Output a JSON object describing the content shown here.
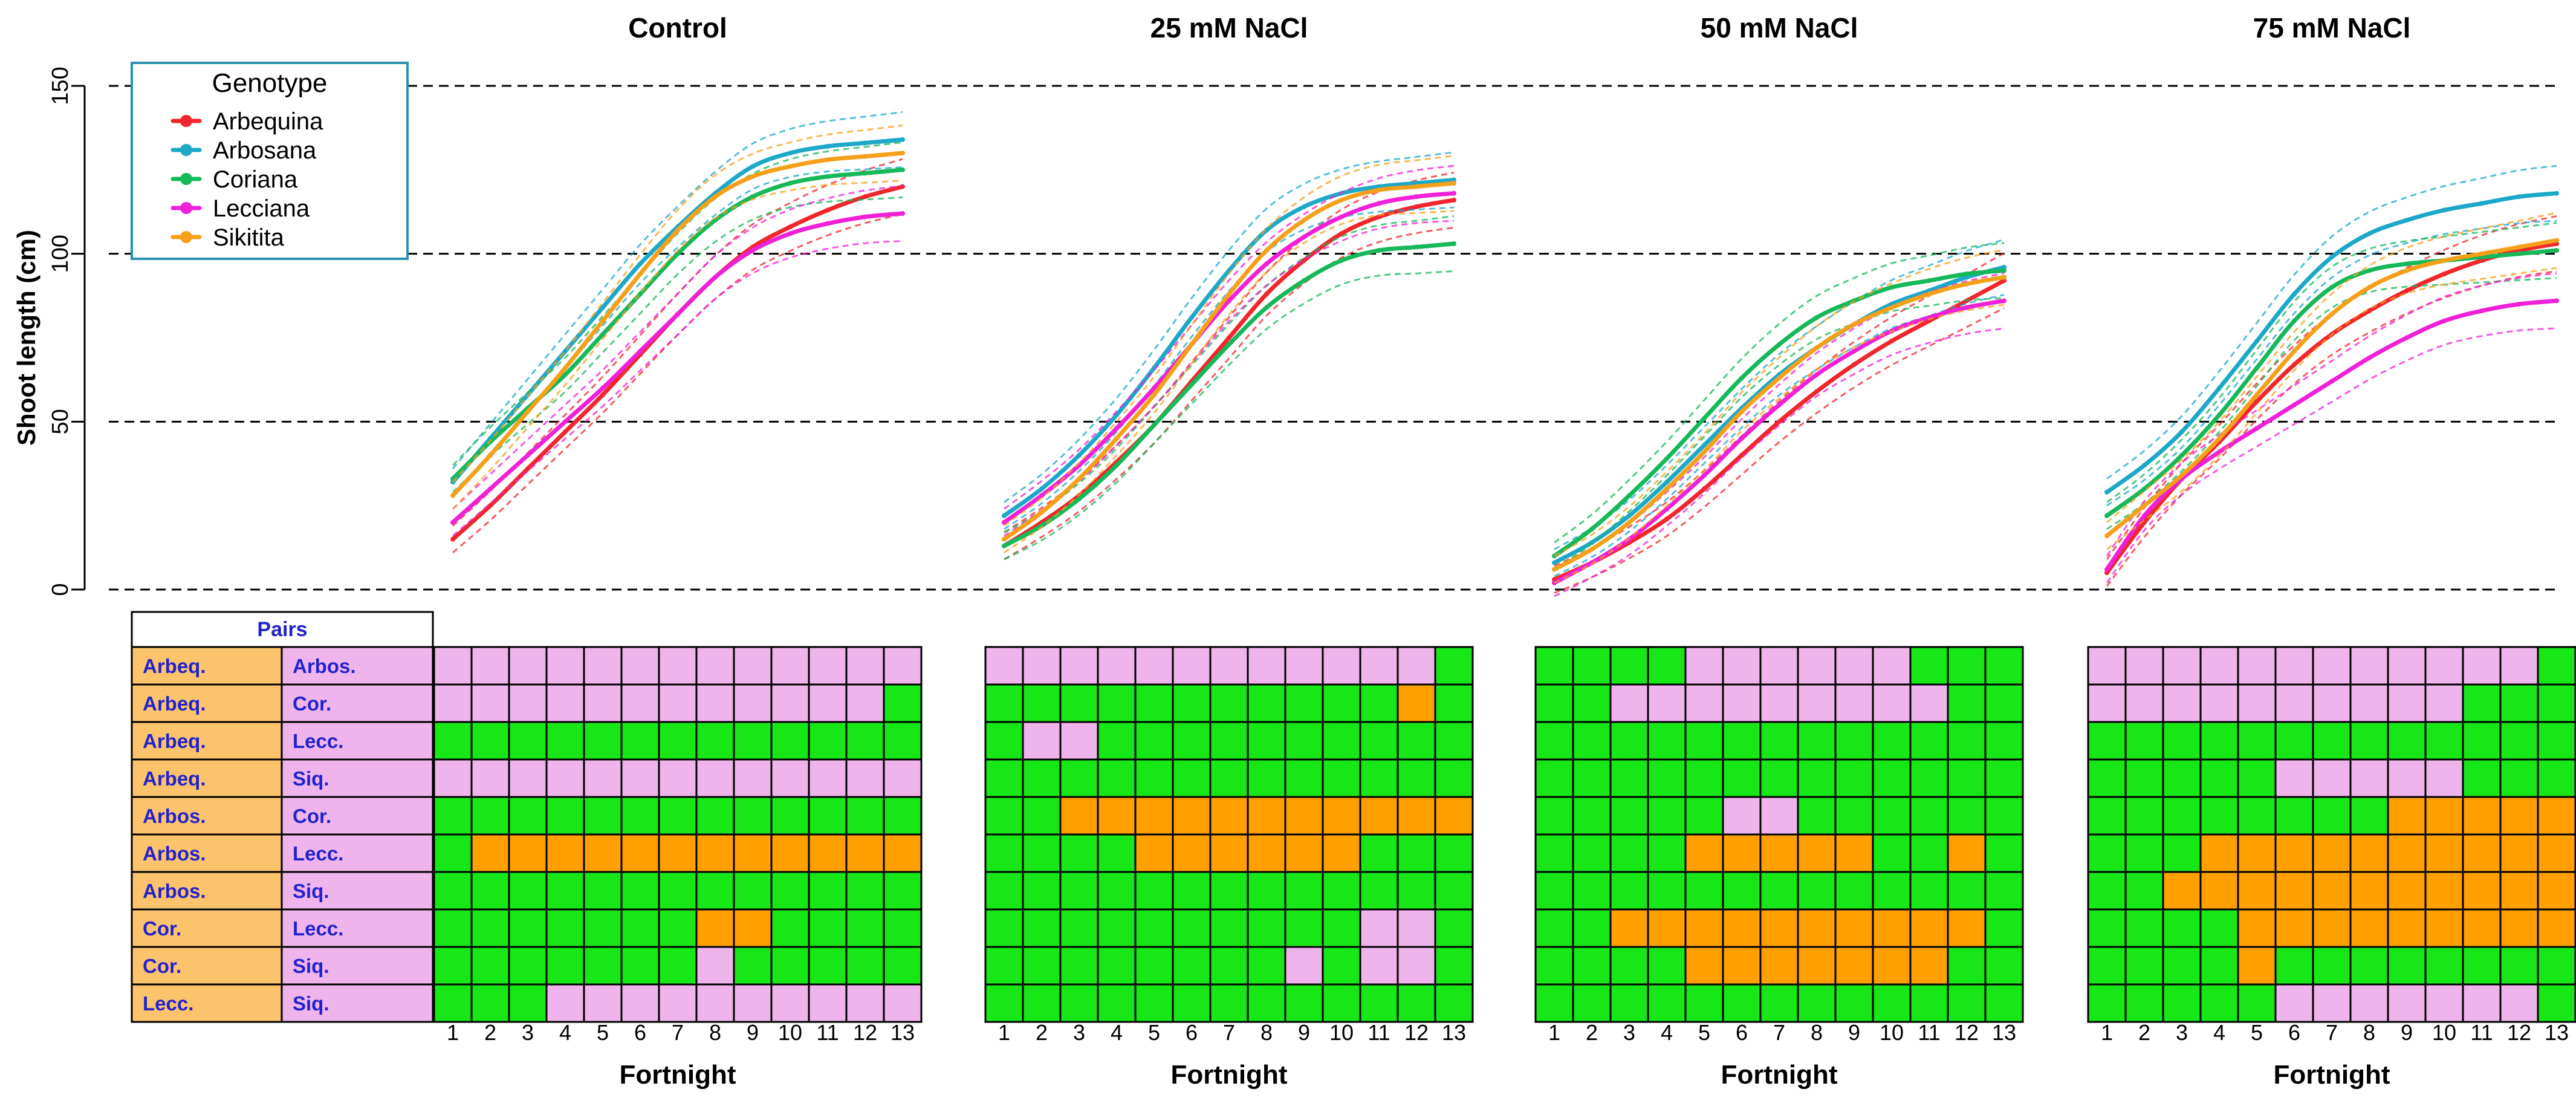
{
  "figure": {
    "ylabel": "Shoot length (cm)",
    "xlabel": "Fortnight",
    "yticks": [
      "0",
      "50",
      "100",
      "150"
    ],
    "ylim": [
      0,
      150
    ],
    "fortnights": [
      "1",
      "2",
      "3",
      "4",
      "5",
      "6",
      "7",
      "8",
      "9",
      "10",
      "11",
      "12",
      "13"
    ],
    "pairs_header": "Pairs",
    "legend": {
      "title": "Genotype",
      "entries": [
        {
          "name": "Arbequina",
          "color": "#f0262d"
        },
        {
          "name": "Arbosana",
          "color": "#1da8c8"
        },
        {
          "name": "Coriana",
          "color": "#16b85a"
        },
        {
          "name": "Lecciana",
          "color": "#f020d8"
        },
        {
          "name": "Sikitita",
          "color": "#f5a01a"
        }
      ]
    },
    "pairs": [
      {
        "a": "Arbeq.",
        "b": "Arbos."
      },
      {
        "a": "Arbeq.",
        "b": "Cor."
      },
      {
        "a": "Arbeq.",
        "b": "Lecc."
      },
      {
        "a": "Arbeq.",
        "b": "Siq."
      },
      {
        "a": "Arbos.",
        "b": "Cor."
      },
      {
        "a": "Arbos.",
        "b": "Lecc."
      },
      {
        "a": "Arbos.",
        "b": "Siq."
      },
      {
        "a": "Cor.",
        "b": "Lecc."
      },
      {
        "a": "Cor.",
        "b": "Siq."
      },
      {
        "a": "Lecc.",
        "b": "Siq."
      }
    ],
    "heatmap_colors": {
      "P": "#f0b4ec",
      "G": "#17e617",
      "O": "#ffa000"
    }
  },
  "chart_data": [
    {
      "type": "line",
      "title": "Control",
      "x": [
        1,
        2,
        3,
        4,
        5,
        6,
        7,
        8,
        9,
        10,
        11,
        12,
        13
      ],
      "series": [
        {
          "name": "Arbequina",
          "values": [
            15,
            25,
            36,
            47,
            58,
            70,
            82,
            93,
            102,
            108,
            113,
            117,
            120
          ]
        },
        {
          "name": "Arbosana",
          "values": [
            32,
            45,
            58,
            71,
            84,
            97,
            108,
            118,
            126,
            130,
            132,
            133,
            134
          ]
        },
        {
          "name": "Coriana",
          "values": [
            33,
            44,
            54,
            64,
            76,
            88,
            100,
            110,
            117,
            121,
            123,
            124,
            125
          ]
        },
        {
          "name": "Lecciana",
          "values": [
            20,
            30,
            40,
            50,
            60,
            71,
            82,
            93,
            101,
            106,
            109,
            111,
            112
          ]
        },
        {
          "name": "Sikitita",
          "values": [
            28,
            40,
            53,
            66,
            80,
            94,
            107,
            117,
            123,
            126,
            128,
            129,
            130
          ]
        }
      ],
      "heatmap": {
        "type": "heatmap",
        "rows": [
          "PPPPPPPPPPPPP",
          "PPPPPPPPPPPPG",
          "GGGGGGGGGGGGG",
          "PPPPPPPPPPPPP",
          "GGGGGGGGGGGGG",
          "GOOOOOOOOOOOO",
          "GGGGGGGGGGGGG",
          "GGGGGGGOOGGGG",
          "GGGGGGGPGGGGG",
          "GGGPPPPPPPPPP"
        ]
      }
    },
    {
      "type": "line",
      "title": "25 mM NaCl",
      "x": [
        1,
        2,
        3,
        4,
        5,
        6,
        7,
        8,
        9,
        10,
        11,
        12,
        13
      ],
      "series": [
        {
          "name": "Arbequina",
          "values": [
            13,
            20,
            28,
            38,
            49,
            62,
            75,
            88,
            98,
            106,
            111,
            114,
            116
          ]
        },
        {
          "name": "Arbosana",
          "values": [
            22,
            30,
            40,
            52,
            66,
            81,
            95,
            107,
            114,
            118,
            120,
            121,
            122
          ]
        },
        {
          "name": "Coriana",
          "values": [
            13,
            19,
            27,
            37,
            49,
            61,
            73,
            84,
            92,
            98,
            101,
            102,
            103
          ]
        },
        {
          "name": "Lecciana",
          "values": [
            20,
            28,
            37,
            48,
            60,
            73,
            86,
            97,
            105,
            111,
            115,
            117,
            118
          ]
        },
        {
          "name": "Sikitita",
          "values": [
            15,
            23,
            33,
            45,
            58,
            73,
            88,
            101,
            110,
            116,
            119,
            120,
            121
          ]
        }
      ],
      "heatmap": {
        "type": "heatmap",
        "rows": [
          "PPPPPPPPPPPPG",
          "GGGGGGGGGGGOG",
          "GPPGGGGGGGGGG",
          "GGGGGGGGGGGGG",
          "GGOOOOOOOOOOO",
          "GGGGOOOOOOGGG",
          "GGGGGGGGGGGGG",
          "GGGGGGGGGGPPG",
          "GGGGGGGGPGPPG",
          "GGGGGGGGGGGGG"
        ]
      }
    },
    {
      "type": "line",
      "title": "50 mM NaCl",
      "x": [
        1,
        2,
        3,
        4,
        5,
        6,
        7,
        8,
        9,
        10,
        11,
        12,
        13
      ],
      "series": [
        {
          "name": "Arbequina",
          "values": [
            3,
            8,
            14,
            21,
            30,
            40,
            50,
            59,
            67,
            74,
            80,
            86,
            92
          ]
        },
        {
          "name": "Arbosana",
          "values": [
            8,
            14,
            22,
            32,
            43,
            54,
            64,
            72,
            79,
            85,
            89,
            93,
            96
          ]
        },
        {
          "name": "Coriana",
          "values": [
            10,
            18,
            28,
            39,
            51,
            63,
            73,
            81,
            86,
            90,
            92,
            94,
            95
          ]
        },
        {
          "name": "Lecciana",
          "values": [
            2,
            8,
            15,
            24,
            34,
            45,
            55,
            64,
            71,
            77,
            81,
            84,
            86
          ]
        },
        {
          "name": "Sikitita",
          "values": [
            6,
            12,
            20,
            30,
            41,
            53,
            63,
            72,
            79,
            84,
            88,
            91,
            93
          ]
        }
      ],
      "heatmap": {
        "type": "heatmap",
        "rows": [
          "GGGGPPPPPPGGG",
          "GGPPPPPPPPPGG",
          "GGGGGGGGGGGGG",
          "GGGGGGGGGGGGG",
          "GGGGGPPGGGGGG",
          "GGGGOOOOOGGOG",
          "GGGGGGGGGGGGG",
          "GGOOOOOOOOOOG",
          "GGGGOOOOOOOGG",
          "GGGGGGGGGGGGG"
        ]
      }
    },
    {
      "type": "line",
      "title": "75 mM NaCl",
      "x": [
        1,
        2,
        3,
        4,
        5,
        6,
        7,
        8,
        9,
        10,
        11,
        12,
        13
      ],
      "series": [
        {
          "name": "Arbequina",
          "values": [
            5,
            20,
            33,
            44,
            56,
            67,
            76,
            83,
            89,
            94,
            98,
            101,
            103
          ]
        },
        {
          "name": "Arbosana",
          "values": [
            29,
            37,
            47,
            60,
            74,
            88,
            99,
            106,
            110,
            113,
            115,
            117,
            118
          ]
        },
        {
          "name": "Coriana",
          "values": [
            22,
            30,
            40,
            52,
            66,
            80,
            90,
            95,
            97,
            98,
            99,
            100,
            101
          ]
        },
        {
          "name": "Lecciana",
          "values": [
            6,
            22,
            33,
            41,
            48,
            55,
            62,
            69,
            75,
            80,
            83,
            85,
            86
          ]
        },
        {
          "name": "Sikitita",
          "values": [
            16,
            25,
            34,
            45,
            58,
            71,
            82,
            90,
            95,
            98,
            100,
            102,
            104
          ]
        }
      ],
      "heatmap": {
        "type": "heatmap",
        "rows": [
          "PPPPPPPPPPPPG",
          "PPPPPPPPPPGGG",
          "GGGGGGGGGGGGG",
          "GGGGGPPPPPGGG",
          "GGGGGGGGOOOOO",
          "GGGOOOOOOOOOO",
          "GGOOOOOOOOOOO",
          "GGGGOOOOOOOOO",
          "GGGGOGGGGGGGG",
          "GGGGGPPPPPPPG"
        ]
      }
    }
  ]
}
